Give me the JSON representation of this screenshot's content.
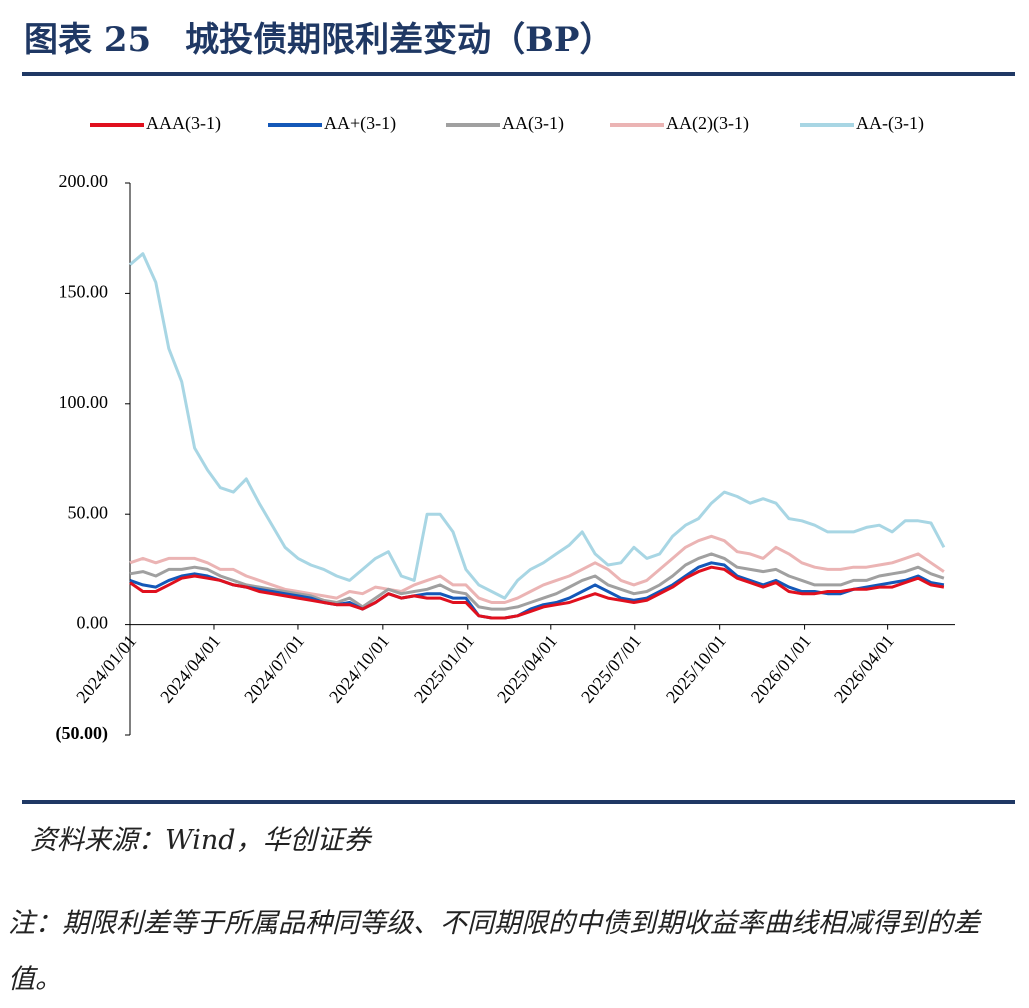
{
  "chart_data": {
    "type": "line",
    "title": "图表 25　城投债期限利差变动（BP）",
    "source": "资料来源：Wind，华创证券",
    "note": "注：期限利差等于所属品种同等级、不同期限的中债到期收益率曲线相减得到的差值。",
    "x": [
      "2024/01/01",
      "2024/01/15",
      "2024/01/29",
      "2024/02/12",
      "2024/02/26",
      "2024/03/11",
      "2024/03/25",
      "2024/04/08",
      "2024/04/22",
      "2024/05/06",
      "2024/05/20",
      "2024/06/03",
      "2024/06/17",
      "2024/07/01",
      "2024/07/15",
      "2024/07/29",
      "2024/08/12",
      "2024/08/26",
      "2024/09/09",
      "2024/09/23",
      "2024/10/07",
      "2024/10/21",
      "2024/11/04",
      "2024/11/18",
      "2024/12/02",
      "2024/12/16",
      "2024/12/30",
      "2025/01/13",
      "2025/01/27",
      "2025/02/10",
      "2025/02/24",
      "2025/03/10",
      "2025/03/24",
      "2025/04/07",
      "2025/04/21",
      "2025/05/05",
      "2025/05/19",
      "2025/06/02",
      "2025/06/16",
      "2025/06/30",
      "2025/07/14",
      "2025/07/28",
      "2025/08/11",
      "2025/08/25",
      "2025/09/08",
      "2025/09/22",
      "2025/10/06",
      "2025/10/20",
      "2025/11/03",
      "2025/11/17",
      "2025/12/01",
      "2025/12/15",
      "2025/12/29",
      "2026/01/12",
      "2026/01/26",
      "2026/02/09",
      "2026/02/23",
      "2026/03/09",
      "2026/03/23",
      "2026/04/06",
      "2026/04/20",
      "2026/05/04",
      "2026/05/18",
      "2026/06/01"
    ],
    "xlim": [
      "2024/01/01",
      "2026/06/13"
    ],
    "xticks": [
      "2024/01/01",
      "2024/04/01",
      "2024/07/01",
      "2024/10/01",
      "2025/01/01",
      "2025/04/01",
      "2025/07/01",
      "2025/10/01",
      "2026/01/01",
      "2026/04/01"
    ],
    "ylim": [
      -50,
      200
    ],
    "yticks": [
      {
        "value": 200,
        "label": "200.00"
      },
      {
        "value": 150,
        "label": "150.00"
      },
      {
        "value": 100,
        "label": "100.00"
      },
      {
        "value": 50,
        "label": "50.00"
      },
      {
        "value": 0,
        "label": "0.00"
      },
      {
        "value": -50,
        "label": "(50.00)"
      }
    ],
    "negative_tick_color": "#e00000",
    "series": [
      {
        "name": "AAA(3-1)",
        "color": "#e0101e",
        "values": [
          19,
          15,
          15,
          18,
          21,
          22,
          21,
          20,
          18,
          17,
          15,
          14,
          13,
          12,
          11,
          10,
          9,
          9,
          7,
          10,
          14,
          12,
          13,
          12,
          12,
          10,
          10,
          4,
          3,
          3,
          4,
          6,
          8,
          9,
          10,
          12,
          14,
          12,
          11,
          10,
          11,
          14,
          17,
          21,
          24,
          26,
          25,
          21,
          19,
          17,
          19,
          15,
          14,
          14,
          15,
          15,
          16,
          16,
          17,
          17,
          19,
          21,
          18,
          17
        ]
      },
      {
        "name": "AA+(3-1)",
        "color": "#1458b8",
        "values": [
          20,
          18,
          17,
          20,
          22,
          23,
          22,
          20,
          18,
          17,
          16,
          15,
          14,
          13,
          12,
          10,
          9,
          10,
          7,
          10,
          14,
          12,
          13,
          14,
          14,
          12,
          12,
          4,
          3,
          3,
          4,
          7,
          9,
          10,
          12,
          15,
          18,
          15,
          12,
          11,
          12,
          15,
          18,
          22,
          26,
          28,
          27,
          22,
          20,
          18,
          20,
          17,
          15,
          15,
          14,
          14,
          16,
          17,
          18,
          19,
          20,
          22,
          19,
          18
        ]
      },
      {
        "name": "AA(3-1)",
        "color": "#a0a0a0",
        "values": [
          23,
          24,
          22,
          25,
          25,
          26,
          25,
          22,
          20,
          18,
          17,
          16,
          15,
          14,
          13,
          11,
          10,
          12,
          8,
          12,
          16,
          14,
          15,
          16,
          18,
          15,
          14,
          8,
          7,
          7,
          8,
          10,
          12,
          14,
          17,
          20,
          22,
          18,
          16,
          14,
          15,
          18,
          22,
          27,
          30,
          32,
          30,
          26,
          25,
          24,
          25,
          22,
          20,
          18,
          18,
          18,
          20,
          20,
          22,
          23,
          24,
          26,
          23,
          21
        ]
      },
      {
        "name": "AA(2)(3-1)",
        "color": "#ebb4b4",
        "values": [
          28,
          30,
          28,
          30,
          30,
          30,
          28,
          25,
          25,
          22,
          20,
          18,
          16,
          15,
          14,
          13,
          12,
          15,
          14,
          17,
          16,
          15,
          18,
          20,
          22,
          18,
          18,
          12,
          10,
          10,
          12,
          15,
          18,
          20,
          22,
          25,
          28,
          25,
          20,
          18,
          20,
          25,
          30,
          35,
          38,
          40,
          38,
          33,
          32,
          30,
          35,
          32,
          28,
          26,
          25,
          25,
          26,
          26,
          27,
          28,
          30,
          32,
          28,
          24
        ]
      },
      {
        "name": "AA-(3-1)",
        "color": "#a8d6e4",
        "values": [
          163,
          168,
          155,
          125,
          110,
          80,
          70,
          62,
          60,
          66,
          55,
          45,
          35,
          30,
          27,
          25,
          22,
          20,
          25,
          30,
          33,
          22,
          20,
          50,
          50,
          42,
          25,
          18,
          15,
          12,
          20,
          25,
          28,
          32,
          36,
          42,
          32,
          27,
          28,
          35,
          30,
          32,
          40,
          45,
          48,
          55,
          60,
          58,
          55,
          57,
          55,
          48,
          47,
          45,
          42,
          42,
          42,
          44,
          45,
          42,
          47,
          47,
          46,
          35
        ]
      }
    ]
  }
}
